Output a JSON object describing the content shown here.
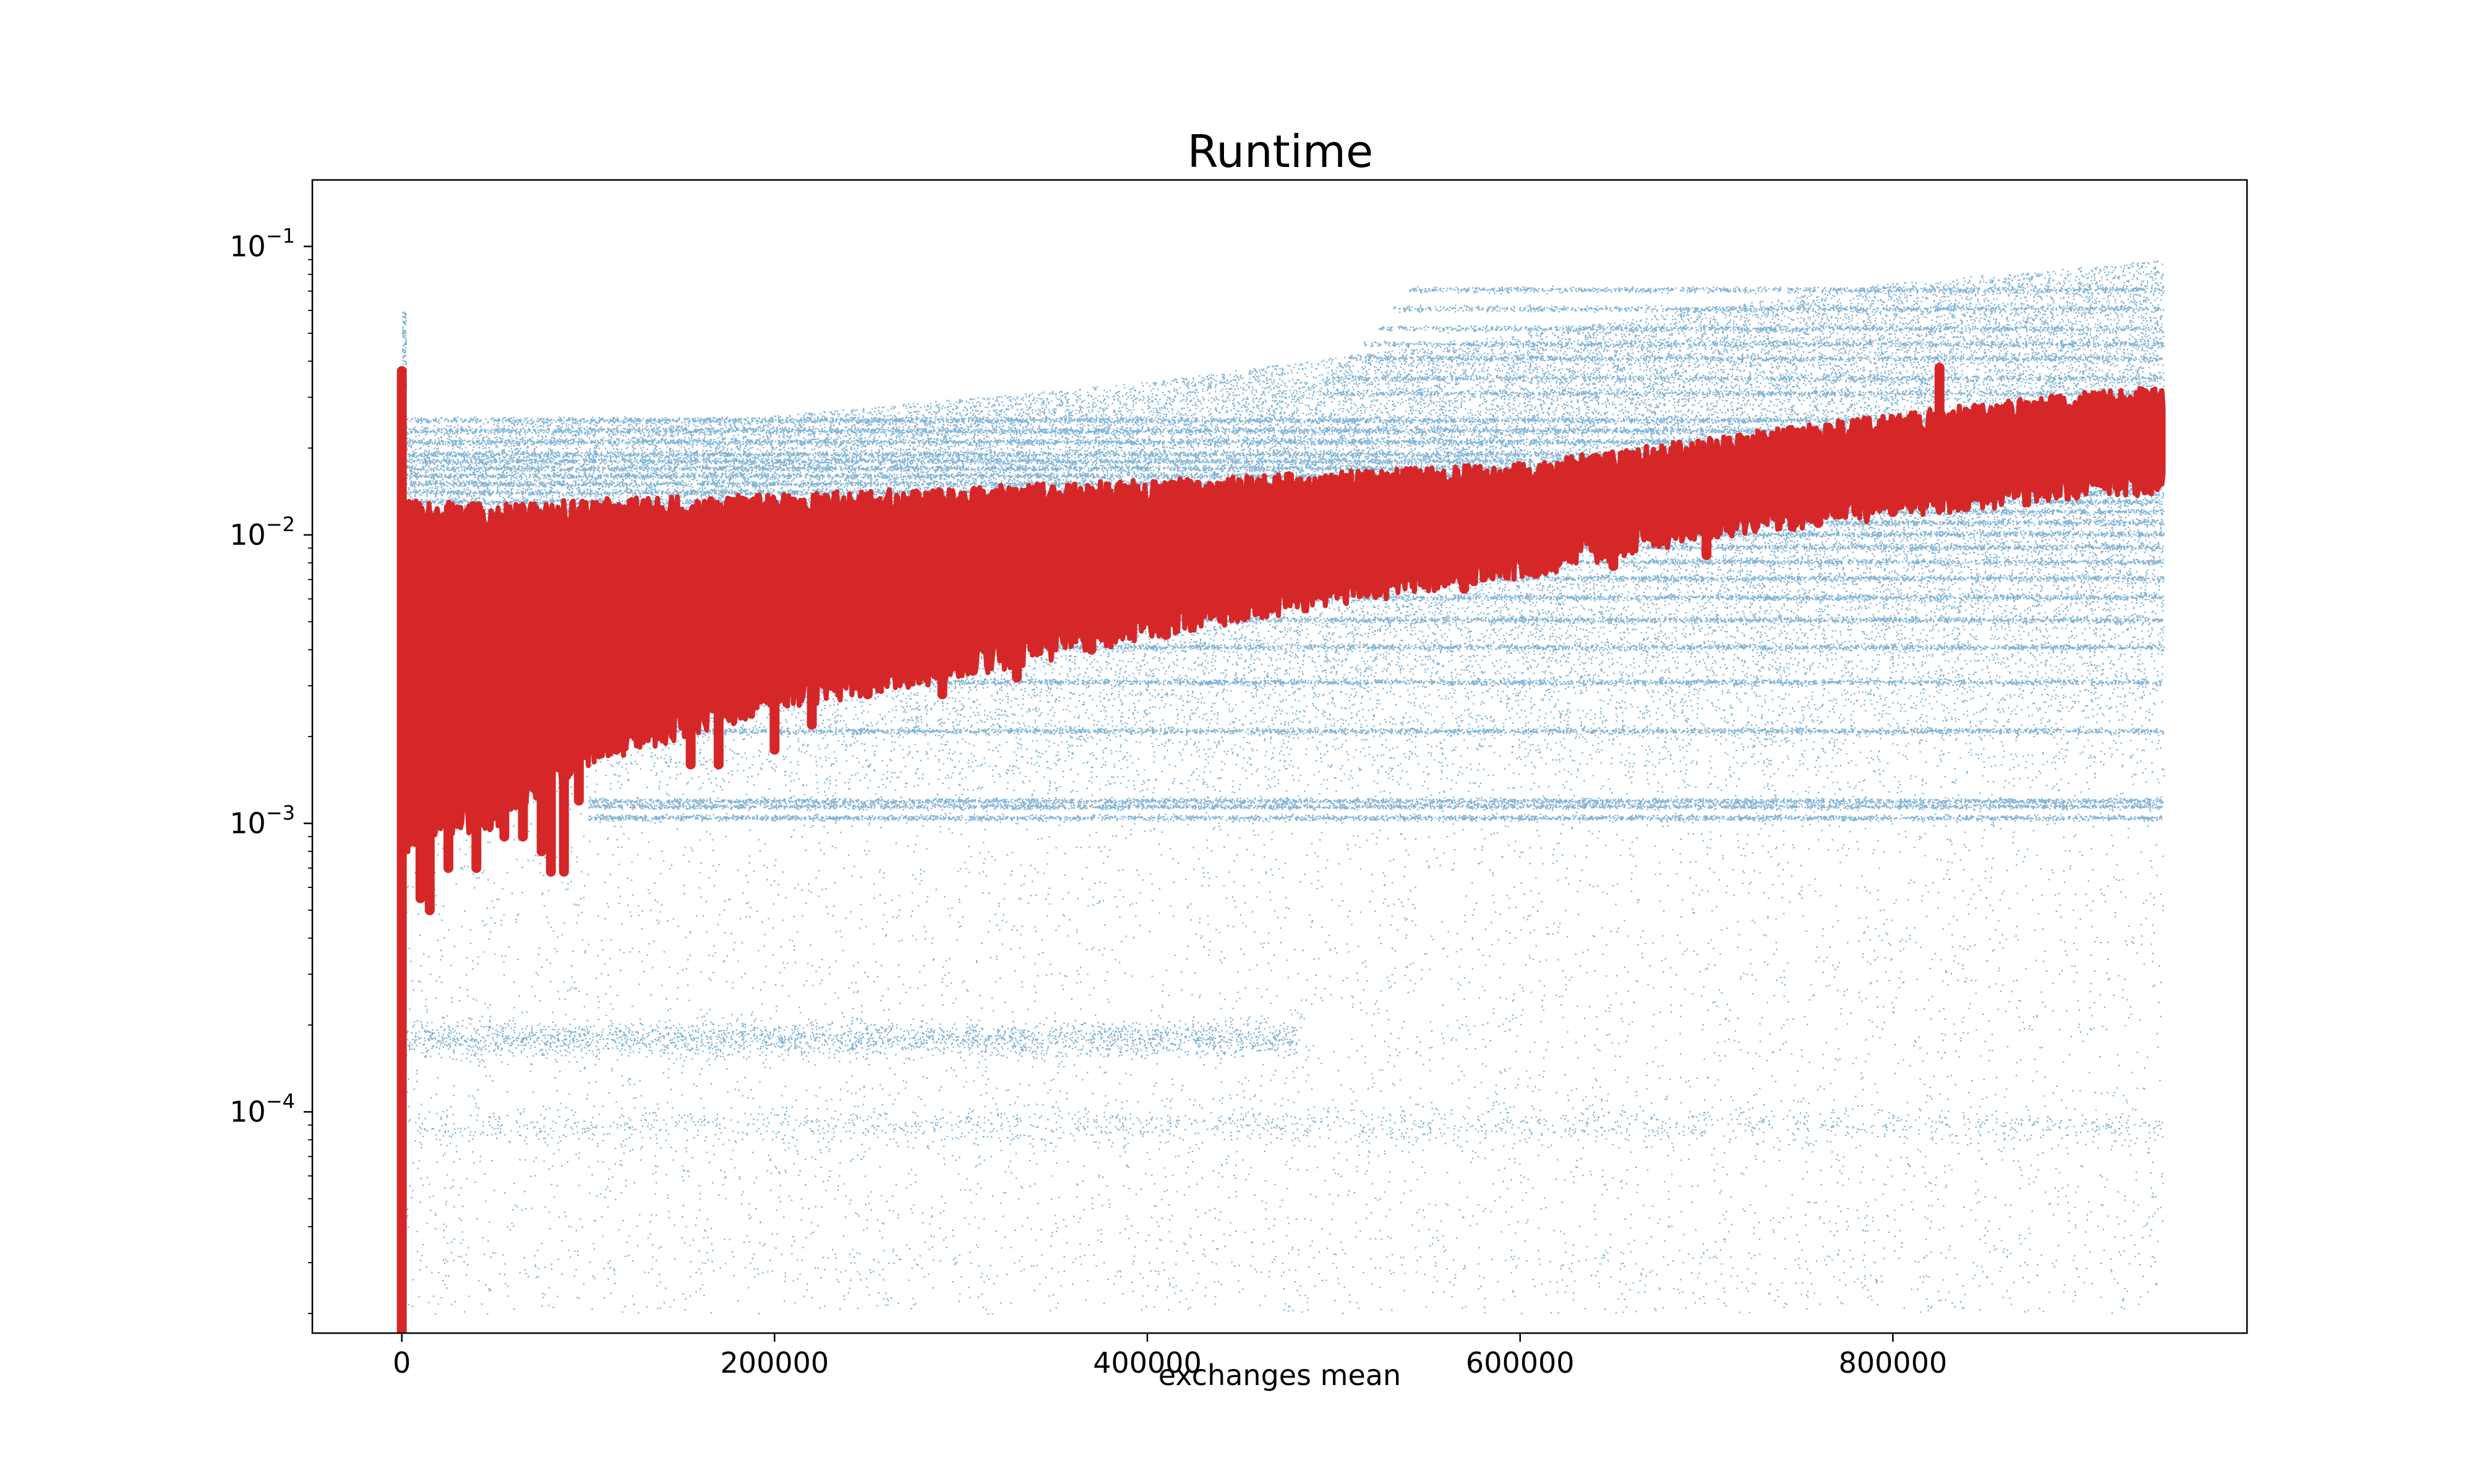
{
  "chart_data": {
    "type": "scatter",
    "title": "Runtime",
    "xlabel": "exchanges mean",
    "ylabel": "",
    "xlim": [
      -48000,
      990000
    ],
    "ylim": [
      1.71e-05,
      0.17
    ],
    "yscale": "log",
    "grid": false,
    "legend": "none",
    "x_ticks": [
      {
        "value": 0,
        "label": "0"
      },
      {
        "value": 200000,
        "label": "200000"
      },
      {
        "value": 400000,
        "label": "400000"
      },
      {
        "value": 600000,
        "label": "600000"
      },
      {
        "value": 800000,
        "label": "800000"
      }
    ],
    "y_ticks": [
      {
        "value": 0.0001,
        "base": "10",
        "exp": "−4"
      },
      {
        "value": 0.001,
        "base": "10",
        "exp": "−3"
      },
      {
        "value": 0.01,
        "base": "10",
        "exp": "−2"
      },
      {
        "value": 0.1,
        "base": "10",
        "exp": "−1"
      }
    ],
    "series": [
      {
        "kind": "scatter",
        "color": "#1f77b4",
        "x_range": [
          0,
          945000
        ],
        "horizontal_bands": [
          0.00105,
          0.00115,
          0.0012,
          0.0021,
          0.0031,
          0.0041,
          0.0051,
          0.0061,
          0.0071,
          0.0081,
          0.0091,
          0.0101,
          0.0111,
          0.0121,
          0.0131,
          0.0141,
          0.0151,
          0.0161,
          0.0171,
          0.0181,
          0.0191,
          0.0211,
          0.0231,
          0.0251,
          0.0311,
          0.0351,
          0.0411,
          0.0461,
          0.0521,
          0.0611,
          0.0711
        ],
        "spread_upper": [
          [
            0,
            0.024
          ],
          [
            200000,
            0.026
          ],
          [
            400000,
            0.034
          ],
          [
            600000,
            0.05
          ],
          [
            800000,
            0.075
          ],
          [
            945000,
            0.09
          ]
        ],
        "spread_lower": [
          [
            0,
            0.0001
          ],
          [
            945000,
            0.0001
          ]
        ],
        "sparse_clusters": [
          0.00018,
          9e-05,
          3e-05
        ]
      },
      {
        "kind": "line",
        "color": "#d62728",
        "upper_envelope": [
          [
            0,
            0.012
          ],
          [
            50000,
            0.0115
          ],
          [
            100000,
            0.012
          ],
          [
            200000,
            0.0125
          ],
          [
            400000,
            0.014
          ],
          [
            600000,
            0.016
          ],
          [
            800000,
            0.024
          ],
          [
            945000,
            0.03
          ]
        ],
        "lower_envelope": [
          [
            0,
            0.0009
          ],
          [
            20000,
            0.001
          ],
          [
            50000,
            0.0011
          ],
          [
            100000,
            0.0018
          ],
          [
            200000,
            0.0028
          ],
          [
            300000,
            0.0036
          ],
          [
            400000,
            0.005
          ],
          [
            500000,
            0.0065
          ],
          [
            600000,
            0.008
          ],
          [
            700000,
            0.011
          ],
          [
            800000,
            0.013
          ],
          [
            945000,
            0.016
          ]
        ],
        "spike_at_zero": [
          1.71e-05,
          0.037
        ],
        "dips": [
          [
            10000,
            0.00055
          ],
          [
            15000,
            0.0005
          ],
          [
            25000,
            0.0007
          ],
          [
            40000,
            0.0007
          ],
          [
            55000,
            0.0009
          ],
          [
            65000,
            0.0009
          ],
          [
            75000,
            0.0008
          ],
          [
            80000,
            0.00068
          ],
          [
            87000,
            0.00068
          ],
          [
            95000,
            0.0012
          ],
          [
            115000,
            0.0018
          ],
          [
            155000,
            0.0016
          ],
          [
            170000,
            0.0016
          ],
          [
            200000,
            0.0018
          ],
          [
            220000,
            0.0022
          ],
          [
            250000,
            0.0028
          ],
          [
            290000,
            0.0028
          ],
          [
            330000,
            0.0032
          ],
          [
            370000,
            0.004
          ],
          [
            410000,
            0.0045
          ],
          [
            460000,
            0.0055
          ],
          [
            530000,
            0.0068
          ],
          [
            570000,
            0.0065
          ],
          [
            620000,
            0.008
          ],
          [
            650000,
            0.0078
          ],
          [
            700000,
            0.0085
          ],
          [
            760000,
            0.011
          ],
          [
            800000,
            0.012
          ],
          [
            850000,
            0.014
          ],
          [
            900000,
            0.015
          ]
        ],
        "peaks": [
          [
            825000,
            0.038
          ],
          [
            935000,
            0.031
          ]
        ]
      }
    ]
  }
}
